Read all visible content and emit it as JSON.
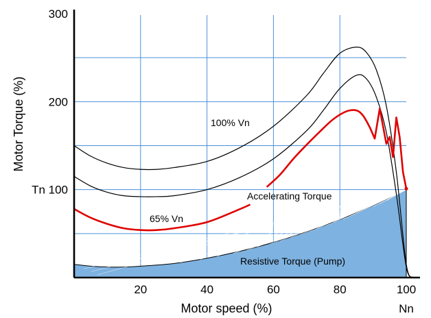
{
  "chart_data": {
    "type": "line",
    "xlabel": "Motor speed (%)",
    "ylabel": "Motor Torque (%)",
    "xlim": [
      0,
      106
    ],
    "ylim": [
      0,
      300
    ],
    "x_ticks": [
      "20",
      "40",
      "60",
      "80",
      "100"
    ],
    "x_tick_values": [
      20,
      40,
      60,
      80,
      100
    ],
    "x_extra_label": "Nn",
    "y_ticks": [
      "Tn 100",
      "200",
      "300"
    ],
    "y_tick_values": [
      100,
      200,
      300
    ],
    "grid": true,
    "colors": {
      "grid": "#4a90d9",
      "fill": "#7eb2e0",
      "highlight": "#e00000",
      "curve": "#000000"
    },
    "series": [
      {
        "values_x": [
          0,
          5,
          10,
          15,
          20,
          25,
          30,
          40,
          50,
          60,
          70,
          75,
          80,
          85,
          88,
          91,
          94,
          97,
          100,
          102
        ],
        "values_y": [
          150,
          138,
          130,
          125,
          123,
          123,
          125,
          132,
          148,
          172,
          207,
          232,
          255,
          262,
          256,
          236,
          195,
          120,
          15,
          0
        ]
      },
      {
        "values_x": [
          0,
          5,
          10,
          15,
          20,
          25,
          30,
          40,
          50,
          60,
          70,
          75,
          80,
          85,
          88,
          91,
          94,
          97,
          100,
          102
        ],
        "values_y": [
          115,
          104,
          97,
          93,
          92,
          92,
          93,
          100,
          114,
          135,
          167,
          190,
          215,
          230,
          226,
          205,
          165,
          95,
          12,
          0
        ]
      },
      {
        "values_x": [
          0,
          5,
          10,
          15,
          20,
          25,
          30,
          40,
          50,
          53
        ],
        "values_y": [
          78,
          68,
          61,
          56,
          54,
          54,
          56,
          63,
          78,
          83
        ]
      },
      {
        "values_x": [
          58,
          62,
          66,
          70,
          74,
          78,
          82,
          85,
          87,
          89,
          90.5,
          92,
          93,
          94,
          95,
          96,
          97,
          98,
          99,
          100
        ],
        "values_y": [
          103,
          117,
          135,
          151,
          166,
          180,
          189,
          190,
          184,
          171,
          158,
          192,
          172,
          152,
          160,
          137,
          182,
          160,
          120,
          101
        ]
      }
    ],
    "resistive_torque": {
      "values_x": [
        0,
        5,
        10,
        15,
        20,
        30,
        40,
        50,
        60,
        70,
        80,
        90,
        100
      ],
      "values_y": [
        15,
        13,
        12,
        12,
        13,
        16,
        22,
        30,
        40,
        52,
        66,
        82,
        100
      ]
    },
    "annotations": {
      "v100": "100% Vn",
      "v65": "65% Vn",
      "accelerating": "Accelerating Torque",
      "resistive": "Resistive Torque (Pump)"
    }
  }
}
